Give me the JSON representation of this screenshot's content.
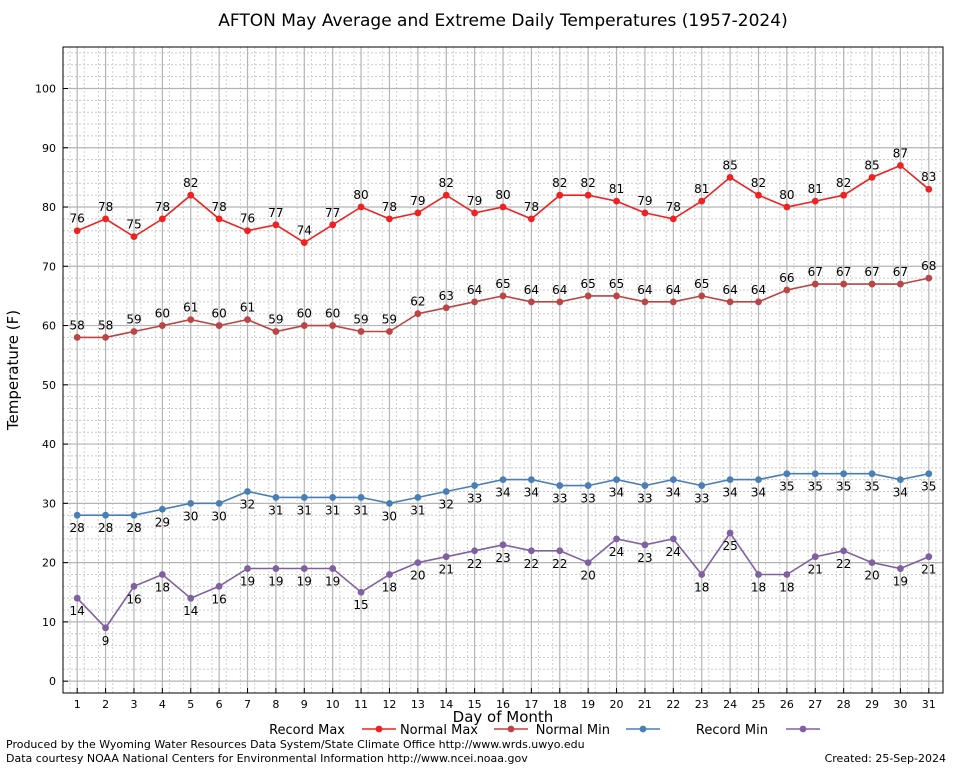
{
  "chart_data": {
    "type": "line",
    "title": "AFTON May Average and Extreme Daily Temperatures (1957-2024)",
    "xlabel": "Day of Month",
    "ylabel": "Temperature (F)",
    "x": [
      1,
      2,
      3,
      4,
      5,
      6,
      7,
      8,
      9,
      10,
      11,
      12,
      13,
      14,
      15,
      16,
      17,
      18,
      19,
      20,
      21,
      22,
      23,
      24,
      25,
      26,
      27,
      28,
      29,
      30,
      31
    ],
    "xlim": [
      0.5,
      31.5
    ],
    "ylim": [
      -2,
      107
    ],
    "yticks": [
      0,
      10,
      20,
      30,
      40,
      50,
      60,
      70,
      80,
      90,
      100
    ],
    "grid": true,
    "legend_position": "bottom",
    "series": [
      {
        "name": "Record Max",
        "color": "#ee2222",
        "label_position": "above",
        "values": [
          76,
          78,
          75,
          78,
          82,
          78,
          76,
          77,
          74,
          77,
          80,
          78,
          79,
          82,
          79,
          80,
          78,
          82,
          82,
          81,
          79,
          78,
          81,
          85,
          82,
          80,
          81,
          82,
          85,
          87,
          83
        ]
      },
      {
        "name": "Normal Max",
        "color": "#bb4444",
        "label_position": "above",
        "values": [
          58,
          58,
          59,
          60,
          61,
          60,
          61,
          59,
          60,
          60,
          59,
          59,
          62,
          63,
          64,
          65,
          64,
          64,
          65,
          65,
          64,
          64,
          65,
          64,
          64,
          66,
          67,
          67,
          67,
          67,
          68
        ]
      },
      {
        "name": "Normal Min",
        "color": "#4a7fb5",
        "label_position": "below",
        "values": [
          28,
          28,
          28,
          29,
          30,
          30,
          32,
          31,
          31,
          31,
          31,
          30,
          31,
          32,
          33,
          34,
          34,
          33,
          33,
          34,
          33,
          34,
          33,
          34,
          34,
          35,
          35,
          35,
          35,
          34,
          35
        ]
      },
      {
        "name": "Record Min",
        "color": "#8060a0",
        "label_position": "below",
        "values": [
          14,
          9,
          16,
          18,
          14,
          16,
          19,
          19,
          19,
          19,
          15,
          18,
          20,
          21,
          22,
          23,
          22,
          22,
          20,
          24,
          23,
          24,
          18,
          25,
          18,
          18,
          21,
          22,
          20,
          19,
          21
        ]
      }
    ]
  },
  "footer": {
    "credit_line1": "Produced by the Wyoming Water Resources Data System/State Climate Office http://www.wrds.uwyo.edu",
    "credit_line2": "Data courtesy NOAA National Centers for Environmental Information http://www.ncei.noaa.gov",
    "created": "Created:  25-Sep-2024"
  }
}
